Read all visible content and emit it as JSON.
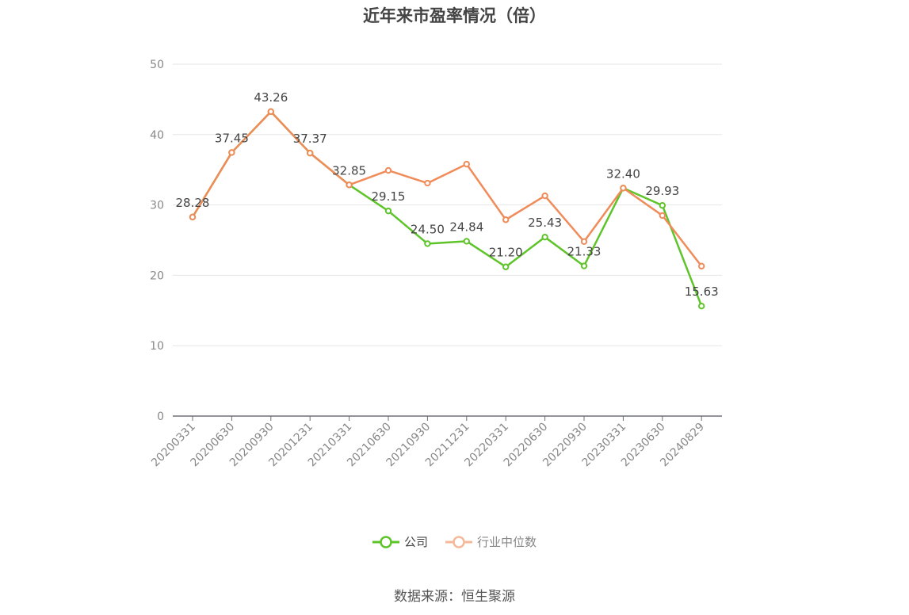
{
  "chart_data": {
    "type": "line",
    "title": "近年来市盈率情况（倍）",
    "categories": [
      "20200331",
      "20200630",
      "20200930",
      "20201231",
      "20210331",
      "20210630",
      "20210930",
      "20211231",
      "20220331",
      "20220630",
      "20220930",
      "20230331",
      "20230630",
      "20240829"
    ],
    "series": [
      {
        "name": "公司",
        "color": "#5ec42a",
        "values": [
          28.28,
          37.45,
          43.26,
          37.37,
          32.85,
          29.15,
          24.5,
          24.84,
          21.2,
          25.43,
          21.33,
          32.4,
          29.93,
          15.63
        ],
        "labels": [
          "28.28",
          "37.45",
          "43.26",
          "37.37",
          "32.85",
          "29.15",
          "24.50",
          "24.84",
          "21.20",
          "25.43",
          "21.33",
          "32.40",
          "29.93",
          "15.63"
        ]
      },
      {
        "name": "行业中位数",
        "color": "#f08b5a",
        "values": [
          28.28,
          37.45,
          43.26,
          37.37,
          32.85,
          34.9,
          33.1,
          35.8,
          27.9,
          31.3,
          24.8,
          32.4,
          28.5,
          21.3
        ]
      }
    ],
    "ylim": [
      0,
      50
    ],
    "yticks": [
      "0",
      "10",
      "20",
      "30",
      "40",
      "50"
    ],
    "grid": true,
    "legend_position": "bottom"
  },
  "source": "数据来源：恒生聚源"
}
